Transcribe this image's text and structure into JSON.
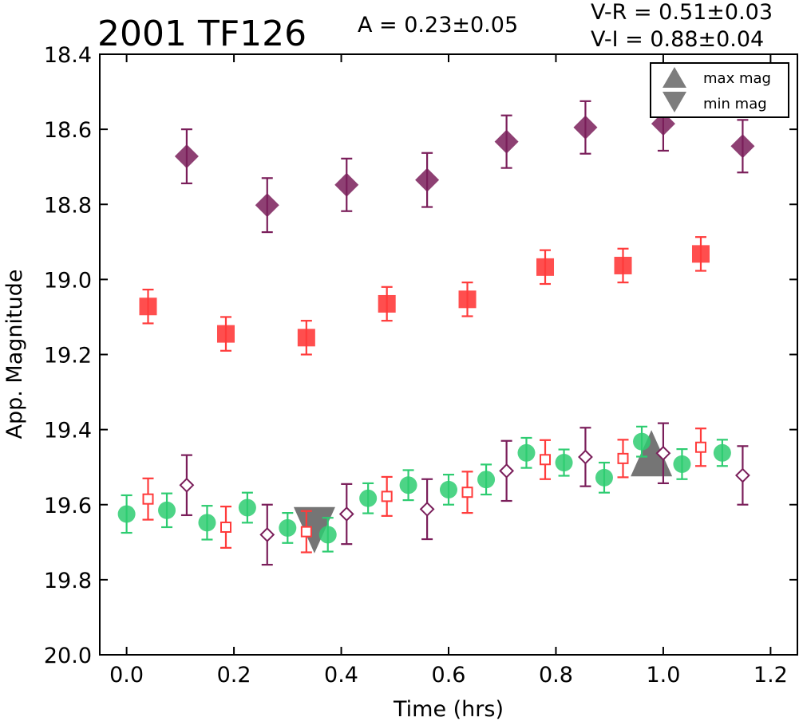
{
  "chart_data": {
    "type": "scatter",
    "title": "2001 TF126",
    "annotation_amplitude": "A  = 0.23±0.05",
    "annotation_vr": "V-R = 0.51±0.03",
    "annotation_vi": "V-I  = 0.88±0.04",
    "xlabel": "Time (hrs)",
    "ylabel": "App. Magnitude",
    "xlim": [
      -0.05,
      1.25
    ],
    "ylim": [
      20.0,
      18.4
    ],
    "y_inverted": true,
    "xticks": [
      "0.0",
      "0.2",
      "0.4",
      "0.6",
      "0.8",
      "1.0",
      "1.2"
    ],
    "yticks": [
      "18.4",
      "18.6",
      "18.8",
      "19.0",
      "19.2",
      "19.4",
      "19.6",
      "19.8",
      "20.0"
    ],
    "grid": false,
    "legend": {
      "position": "top-right",
      "entries": [
        {
          "label": "max mag",
          "marker": "triangle-up"
        },
        {
          "label": "min mag",
          "marker": "triangle-down"
        }
      ]
    },
    "series": [
      {
        "marker": "circle",
        "color": "#2ecc71",
        "points": [
          {
            "x": 0.0,
            "y": 19.625,
            "err": 0.05
          },
          {
            "x": 0.075,
            "y": 19.615,
            "err": 0.045
          },
          {
            "x": 0.15,
            "y": 19.648,
            "err": 0.045
          },
          {
            "x": 0.225,
            "y": 19.608,
            "err": 0.04
          },
          {
            "x": 0.3,
            "y": 19.662,
            "err": 0.04
          },
          {
            "x": 0.375,
            "y": 19.68,
            "err": 0.045
          },
          {
            "x": 0.45,
            "y": 19.583,
            "err": 0.04
          },
          {
            "x": 0.525,
            "y": 19.548,
            "err": 0.04
          },
          {
            "x": 0.6,
            "y": 19.56,
            "err": 0.04
          },
          {
            "x": 0.67,
            "y": 19.533,
            "err": 0.04
          },
          {
            "x": 0.745,
            "y": 19.462,
            "err": 0.04
          },
          {
            "x": 0.815,
            "y": 19.488,
            "err": 0.035
          },
          {
            "x": 0.89,
            "y": 19.528,
            "err": 0.04
          },
          {
            "x": 0.96,
            "y": 19.432,
            "err": 0.04
          },
          {
            "x": 1.035,
            "y": 19.492,
            "err": 0.04
          },
          {
            "x": 1.11,
            "y": 19.462,
            "err": 0.035
          }
        ]
      },
      {
        "marker": "square",
        "color": "#ff3b3b",
        "points": [
          {
            "x": 0.04,
            "y": 19.072,
            "err": 0.045
          },
          {
            "x": 0.185,
            "y": 19.145,
            "err": 0.045
          },
          {
            "x": 0.335,
            "y": 19.155,
            "err": 0.045
          },
          {
            "x": 0.485,
            "y": 19.065,
            "err": 0.045
          },
          {
            "x": 0.635,
            "y": 19.053,
            "err": 0.045
          },
          {
            "x": 0.78,
            "y": 18.967,
            "err": 0.045
          },
          {
            "x": 0.925,
            "y": 18.963,
            "err": 0.045
          },
          {
            "x": 1.07,
            "y": 18.932,
            "err": 0.045
          }
        ]
      },
      {
        "marker": "diamond",
        "color": "#7a1e5a",
        "points": [
          {
            "x": 0.112,
            "y": 18.672,
            "err": 0.072
          },
          {
            "x": 0.262,
            "y": 18.802,
            "err": 0.072
          },
          {
            "x": 0.41,
            "y": 18.748,
            "err": 0.07
          },
          {
            "x": 0.56,
            "y": 18.735,
            "err": 0.072
          },
          {
            "x": 0.708,
            "y": 18.633,
            "err": 0.07
          },
          {
            "x": 0.855,
            "y": 18.595,
            "err": 0.07
          },
          {
            "x": 1.0,
            "y": 18.585,
            "err": 0.072
          },
          {
            "x": 1.148,
            "y": 18.645,
            "err": 0.07
          }
        ]
      },
      {
        "marker": "square-open",
        "color": "#ff3b3b",
        "points": [
          {
            "x": 0.04,
            "y": 19.585,
            "err": 0.055
          },
          {
            "x": 0.185,
            "y": 19.66,
            "err": 0.055
          },
          {
            "x": 0.335,
            "y": 19.672,
            "err": 0.055
          },
          {
            "x": 0.485,
            "y": 19.578,
            "err": 0.052
          },
          {
            "x": 0.635,
            "y": 19.567,
            "err": 0.055
          },
          {
            "x": 0.78,
            "y": 19.48,
            "err": 0.052
          },
          {
            "x": 0.925,
            "y": 19.477,
            "err": 0.05
          },
          {
            "x": 1.07,
            "y": 19.447,
            "err": 0.05
          }
        ]
      },
      {
        "marker": "diamond-open",
        "color": "#7a1e5a",
        "points": [
          {
            "x": 0.112,
            "y": 19.548,
            "err": 0.08
          },
          {
            "x": 0.262,
            "y": 19.68,
            "err": 0.08
          },
          {
            "x": 0.41,
            "y": 19.625,
            "err": 0.08
          },
          {
            "x": 0.56,
            "y": 19.612,
            "err": 0.08
          },
          {
            "x": 0.708,
            "y": 19.51,
            "err": 0.08
          },
          {
            "x": 0.855,
            "y": 19.473,
            "err": 0.078
          },
          {
            "x": 1.0,
            "y": 19.463,
            "err": 0.08
          },
          {
            "x": 1.148,
            "y": 19.522,
            "err": 0.078
          }
        ]
      }
    ],
    "extrema": [
      {
        "label": "max mag",
        "marker": "triangle-up",
        "x": 0.978,
        "y": 19.463,
        "color": "#6e6e6e"
      },
      {
        "label": "min mag",
        "marker": "triangle-down",
        "x": 0.35,
        "y": 19.668,
        "color": "#6e6e6e"
      }
    ]
  }
}
